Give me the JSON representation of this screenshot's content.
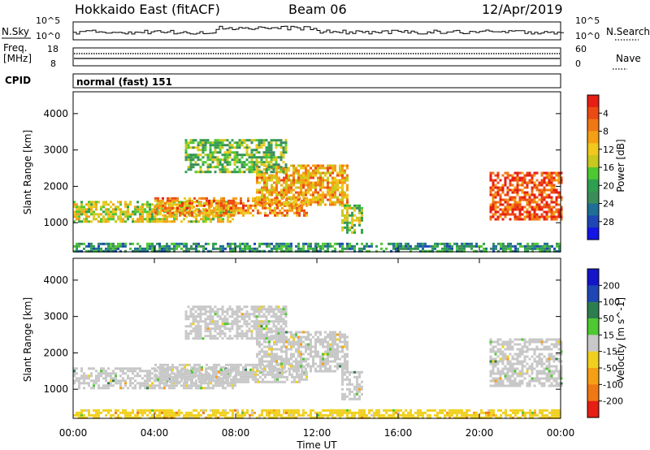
{
  "header": {
    "station": "Hokkaido East (fitACF)",
    "beam": "Beam 06",
    "date": "12/Apr/2019"
  },
  "noise_panel": {
    "left_label": "N.Sky",
    "right_label": "N.Search",
    "tick_top": "10^5",
    "tick_bottom": "10^0",
    "right_tick_top": "10^5",
    "right_tick_bottom": "10^0"
  },
  "freq_panel": {
    "left_label_1": "Freq.",
    "left_label_2": "[MHz]",
    "tick_top": "18",
    "tick_bottom": "8",
    "right_label": "Nave",
    "right_tick_top": "60",
    "right_tick_bottom": "0"
  },
  "cpid": {
    "label": "CPID",
    "text": "normal (fast) 151"
  },
  "x_axis": {
    "label": "Time UT",
    "ticks": [
      "00:00",
      "04:00",
      "08:00",
      "12:00",
      "16:00",
      "20:00",
      "00:00"
    ]
  },
  "chart_data": [
    {
      "type": "heatmap",
      "parameter": "power",
      "ylabel": "Slant Range [km]",
      "yticks": [
        1000,
        2000,
        3000,
        4000
      ],
      "ylim": [
        200,
        4600
      ],
      "xlim_hours": [
        0,
        24
      ],
      "colorbar": {
        "label": "Power [dB]",
        "ticks": [
          "4",
          "8",
          "12",
          "16",
          "20",
          "24",
          "28"
        ],
        "range": [
          0,
          32
        ],
        "colors": [
          "#1414e6",
          "#1e46b4",
          "#1e6e96",
          "#3c8c5a",
          "#2fa050",
          "#4ec832",
          "#c8c81e",
          "#f0c81e",
          "#f5a014",
          "#f07814",
          "#ec4a14",
          "#e61e14"
        ]
      },
      "regions": [
        {
          "t": [
            0.0,
            8.0
          ],
          "r": [
            1050,
            1600
          ],
          "value": 18
        },
        {
          "t": [
            4.0,
            11.5
          ],
          "r": [
            1200,
            1700
          ],
          "value": 24
        },
        {
          "t": [
            9.0,
            13.5
          ],
          "r": [
            1500,
            2600
          ],
          "value": 22
        },
        {
          "t": [
            5.5,
            10.5
          ],
          "r": [
            2400,
            3300
          ],
          "value": 14
        },
        {
          "t": [
            13.2,
            14.2
          ],
          "r": [
            700,
            1500
          ],
          "value": 16
        },
        {
          "t": [
            20.5,
            24.0
          ],
          "r": [
            1100,
            2400
          ],
          "value": 28
        },
        {
          "t": [
            0.0,
            24.0
          ],
          "r": [
            200,
            450
          ],
          "value": 10
        }
      ]
    },
    {
      "type": "heatmap",
      "parameter": "velocity",
      "ylabel": "Slant Range [km]",
      "yticks": [
        1000,
        2000,
        3000,
        4000
      ],
      "ylim": [
        200,
        4600
      ],
      "xlim_hours": [
        0,
        24
      ],
      "colorbar": {
        "label": "Velocity [m s^-1]",
        "ticks": [
          "200",
          "100",
          "50",
          "15",
          "-15",
          "-50",
          "-100",
          "-200"
        ],
        "range": [
          -250,
          250
        ],
        "colors": [
          "#1414c8",
          "#1e46b4",
          "#2e7d4f",
          "#4fc832",
          "#c8c8c8",
          "#f0d01e",
          "#f5a014",
          "#f07814",
          "#e61e14"
        ]
      },
      "regions": [
        {
          "t": [
            0.0,
            8.0
          ],
          "r": [
            1050,
            1600
          ],
          "value": 0
        },
        {
          "t": [
            4.0,
            11.5
          ],
          "r": [
            1200,
            1700
          ],
          "value": 0
        },
        {
          "t": [
            9.0,
            13.5
          ],
          "r": [
            1500,
            2600
          ],
          "value": 0
        },
        {
          "t": [
            5.5,
            10.5
          ],
          "r": [
            2400,
            3300
          ],
          "value": 0
        },
        {
          "t": [
            13.2,
            14.2
          ],
          "r": [
            700,
            1500
          ],
          "value": 0
        },
        {
          "t": [
            20.5,
            24.0
          ],
          "r": [
            1100,
            2400
          ],
          "value": 0
        },
        {
          "t": [
            0.0,
            24.0
          ],
          "r": [
            200,
            450
          ],
          "value": -60
        }
      ]
    }
  ]
}
